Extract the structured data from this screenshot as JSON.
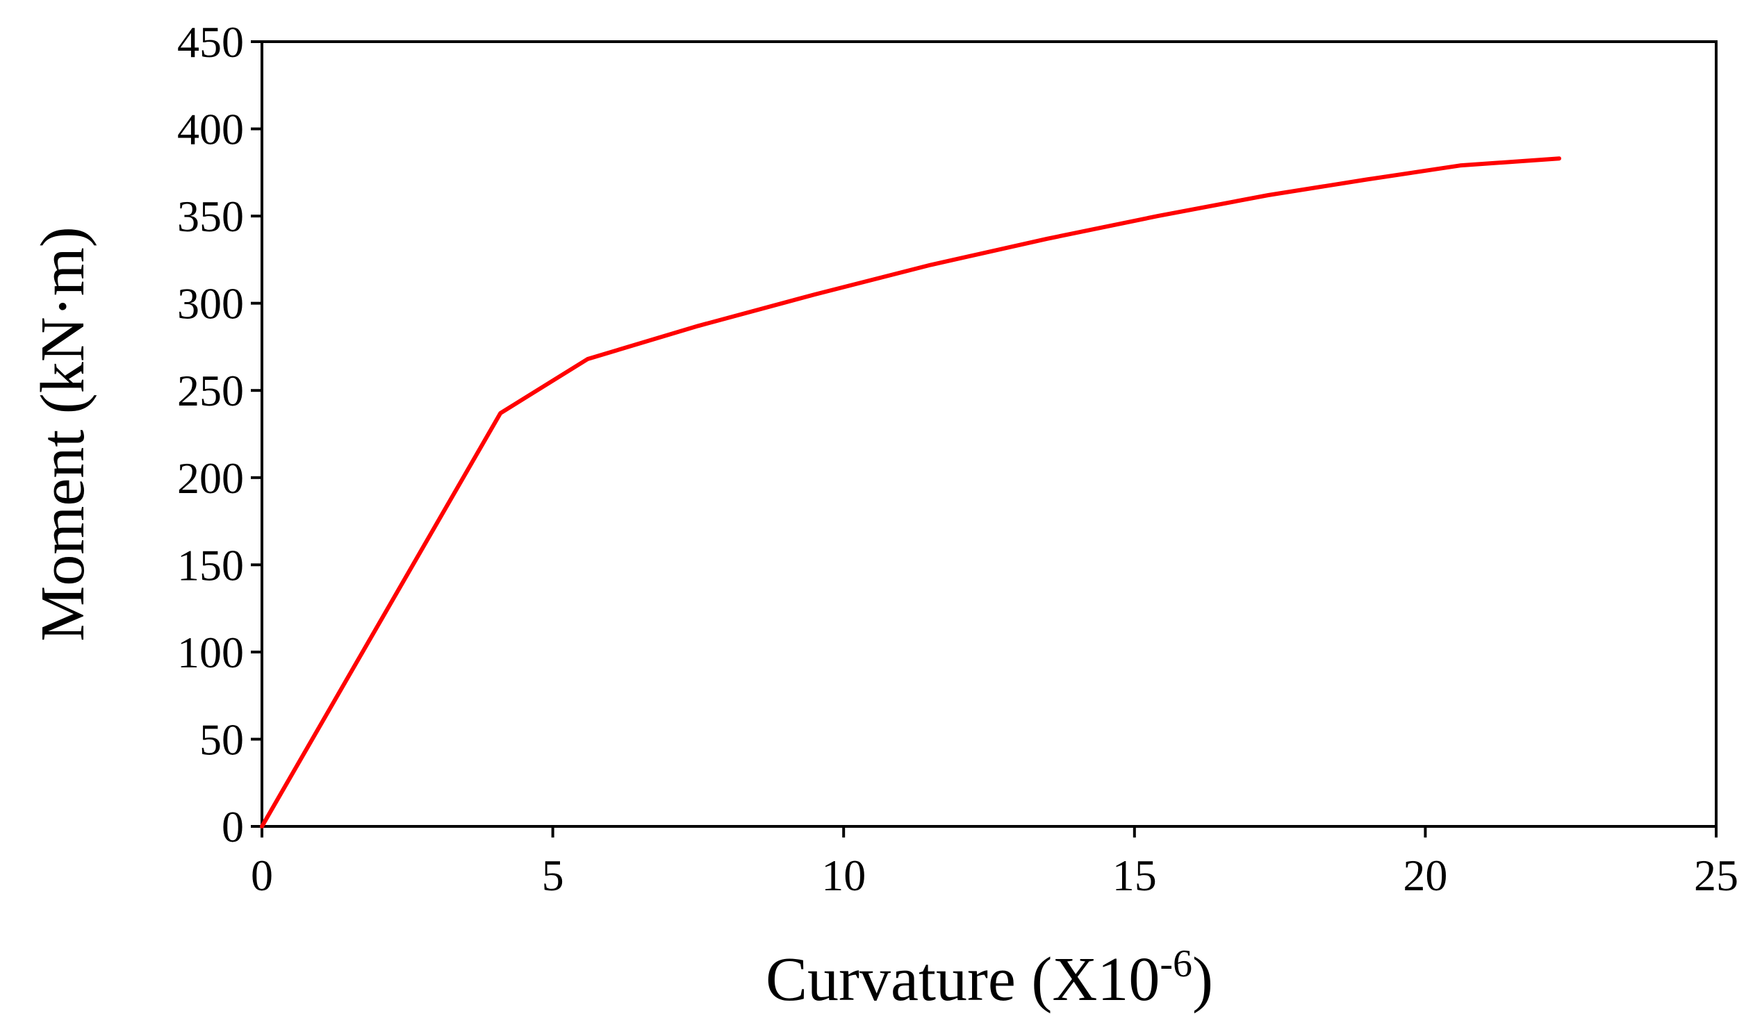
{
  "chart_data": {
    "type": "line",
    "title": "",
    "xlabel": "Curvature (X10",
    "xlabel_superscript": "-6",
    "xlabel_close": ")",
    "ylabel": "Moment (kN·m)",
    "xlim": [
      0,
      25
    ],
    "ylim": [
      0,
      450
    ],
    "xticks": [
      0,
      5,
      10,
      15,
      20,
      25
    ],
    "yticks": [
      0,
      50,
      100,
      150,
      200,
      250,
      300,
      350,
      400,
      450
    ],
    "grid": false,
    "legend": "none",
    "series": [
      {
        "color": "#ff0000",
        "x": [
          0,
          4.1,
          5.6,
          7.5,
          9.5,
          11.5,
          13.5,
          15.4,
          17.3,
          19.0,
          20.6,
          22.3
        ],
        "y": [
          0,
          237,
          268,
          287,
          305,
          322,
          337,
          350,
          362,
          371,
          379,
          383
        ]
      }
    ]
  }
}
